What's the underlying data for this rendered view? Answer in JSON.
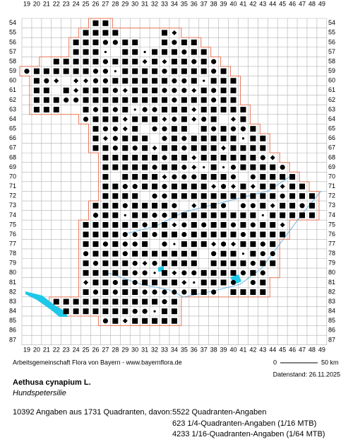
{
  "x_labels": [
    19,
    20,
    21,
    22,
    23,
    24,
    25,
    26,
    27,
    28,
    29,
    30,
    31,
    32,
    33,
    34,
    35,
    36,
    37,
    38,
    39,
    40,
    41,
    42,
    43,
    44,
    45,
    46,
    47,
    48,
    49
  ],
  "y_labels": [
    54,
    55,
    56,
    57,
    58,
    59,
    60,
    61,
    62,
    63,
    64,
    65,
    66,
    67,
    68,
    69,
    70,
    71,
    72,
    73,
    74,
    75,
    76,
    77,
    78,
    79,
    80,
    81,
    82,
    83,
    84,
    85,
    86,
    87
  ],
  "footer": {
    "credit": "Arbeitsgemeinschaft Flora von Bayern - www.bayernflora.de",
    "scale_start": "0",
    "scale_end": "50 km",
    "date": "Datenstand: 26.11.2025"
  },
  "species": {
    "name": "Aethusa cynapium L.",
    "common_name": "Hundspetersilie"
  },
  "stats": {
    "summary": "10392 Angaben aus 1731 Quadranten, davon:",
    "lines": [
      "5522 Quadranten-Angaben",
      "623 1/4-Quadranten-Angaben (1/16 MTB)",
      "4233 1/16-Quadranten-Angaben (1/64 MTB)"
    ]
  }
}
